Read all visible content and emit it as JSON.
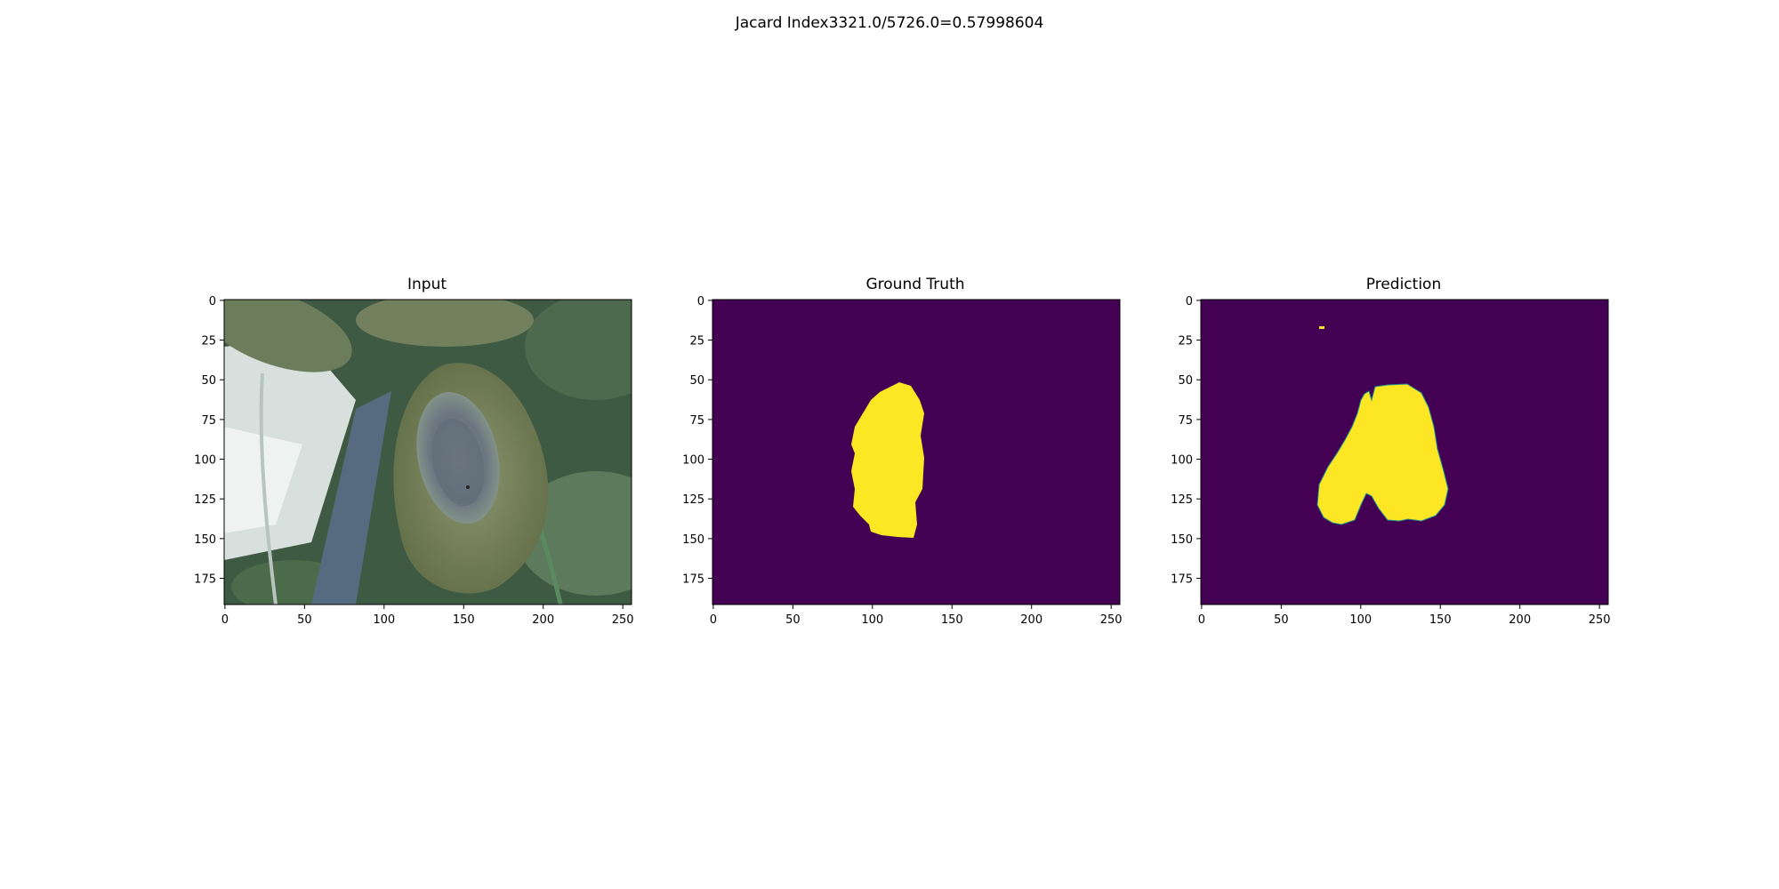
{
  "figure": {
    "suptitle": "Jacard Index3321.0/5726.0=0.57998604"
  },
  "panels": [
    {
      "title": "Input",
      "kind": "photo",
      "x_ticks": [
        "0",
        "50",
        "100",
        "150",
        "200",
        "250"
      ],
      "y_ticks": [
        "0",
        "25",
        "50",
        "75",
        "100",
        "125",
        "150",
        "175"
      ]
    },
    {
      "title": "Ground Truth",
      "kind": "mask",
      "x_ticks": [
        "0",
        "50",
        "100",
        "150",
        "200",
        "250"
      ],
      "y_ticks": [
        "0",
        "25",
        "50",
        "75",
        "100",
        "125",
        "150",
        "175"
      ]
    },
    {
      "title": "Prediction",
      "kind": "mask",
      "x_ticks": [
        "0",
        "50",
        "100",
        "150",
        "200",
        "250"
      ],
      "y_ticks": [
        "0",
        "25",
        "50",
        "75",
        "100",
        "125",
        "150",
        "175"
      ]
    }
  ],
  "colors": {
    "mask_background": "#440154",
    "mask_foreground": "#fde725",
    "mask_edge": "#21918c"
  }
}
